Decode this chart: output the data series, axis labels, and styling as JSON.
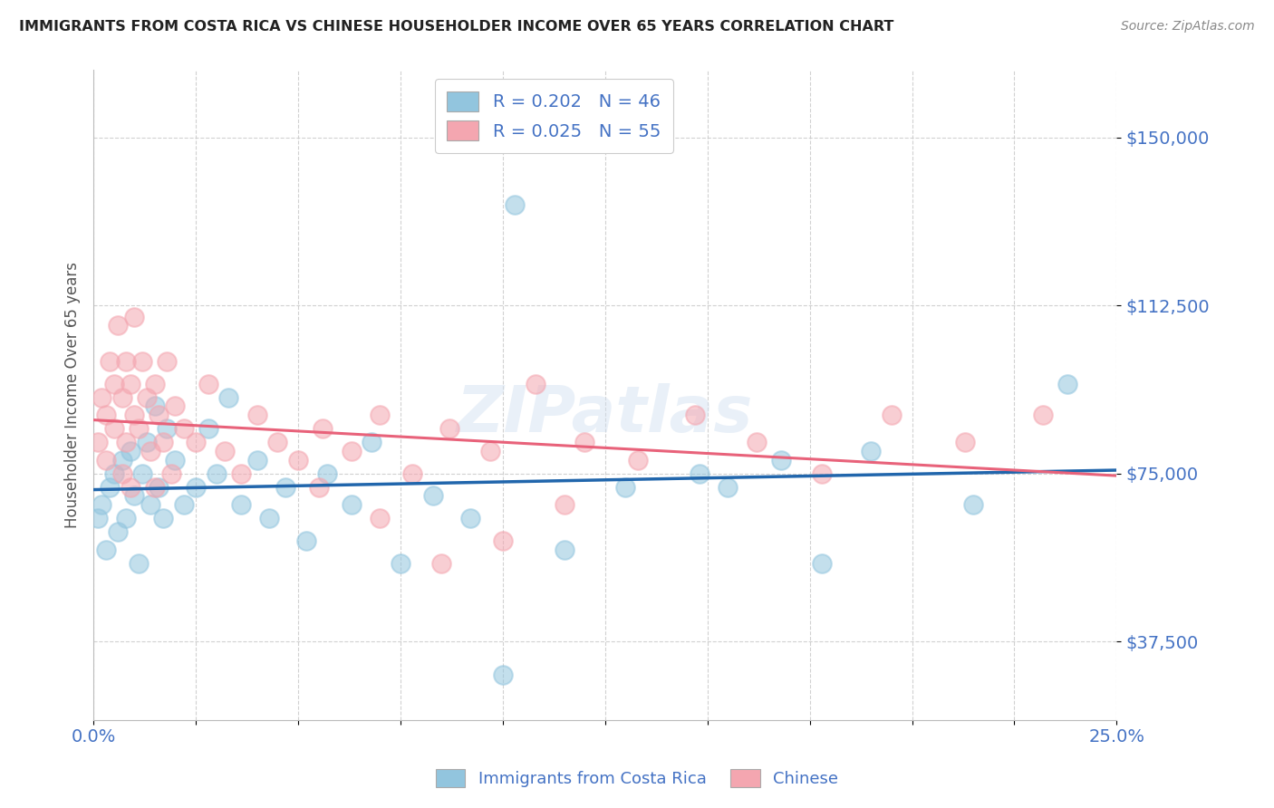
{
  "title": "IMMIGRANTS FROM COSTA RICA VS CHINESE HOUSEHOLDER INCOME OVER 65 YEARS CORRELATION CHART",
  "source": "Source: ZipAtlas.com",
  "ylabel": "Householder Income Over 65 years",
  "xlim": [
    0.0,
    0.25
  ],
  "ylim": [
    20000,
    165000
  ],
  "yticks": [
    37500,
    75000,
    112500,
    150000
  ],
  "ytick_labels": [
    "$37,500",
    "$75,000",
    "$112,500",
    "$150,000"
  ],
  "xticks": [
    0.0,
    0.025,
    0.05,
    0.075,
    0.1,
    0.125,
    0.15,
    0.175,
    0.2,
    0.225,
    0.25
  ],
  "legend_labels_top": [
    "R = 0.202   N = 46",
    "R = 0.025   N = 55"
  ],
  "legend_labels_bottom": [
    "Immigrants from Costa Rica",
    "Chinese"
  ],
  "blue_color": "#92c5de",
  "pink_color": "#f4a6b0",
  "blue_line_color": "#2166ac",
  "pink_line_color": "#e8627a",
  "watermark": "ZIPatlas",
  "axis_color": "#4472c4",
  "cr_x": [
    0.001,
    0.002,
    0.003,
    0.004,
    0.005,
    0.006,
    0.007,
    0.008,
    0.009,
    0.01,
    0.011,
    0.012,
    0.013,
    0.014,
    0.015,
    0.016,
    0.017,
    0.018,
    0.02,
    0.022,
    0.025,
    0.028,
    0.03,
    0.033,
    0.036,
    0.04,
    0.043,
    0.047,
    0.052,
    0.057,
    0.063,
    0.068,
    0.075,
    0.083,
    0.092,
    0.103,
    0.115,
    0.13,
    0.148,
    0.168,
    0.19,
    0.215,
    0.238,
    0.155,
    0.178,
    0.1
  ],
  "cr_y": [
    65000,
    68000,
    58000,
    72000,
    75000,
    62000,
    78000,
    65000,
    80000,
    70000,
    55000,
    75000,
    82000,
    68000,
    90000,
    72000,
    65000,
    85000,
    78000,
    68000,
    72000,
    85000,
    75000,
    92000,
    68000,
    78000,
    65000,
    72000,
    60000,
    75000,
    68000,
    82000,
    55000,
    70000,
    65000,
    135000,
    58000,
    72000,
    75000,
    78000,
    80000,
    68000,
    95000,
    72000,
    55000,
    30000
  ],
  "ch_x": [
    0.001,
    0.002,
    0.003,
    0.003,
    0.004,
    0.005,
    0.005,
    0.006,
    0.007,
    0.007,
    0.008,
    0.008,
    0.009,
    0.009,
    0.01,
    0.01,
    0.011,
    0.012,
    0.013,
    0.014,
    0.015,
    0.015,
    0.016,
    0.017,
    0.018,
    0.019,
    0.02,
    0.022,
    0.025,
    0.028,
    0.032,
    0.036,
    0.04,
    0.045,
    0.05,
    0.056,
    0.063,
    0.07,
    0.078,
    0.087,
    0.097,
    0.108,
    0.12,
    0.133,
    0.147,
    0.162,
    0.178,
    0.195,
    0.213,
    0.232,
    0.055,
    0.07,
    0.085,
    0.1,
    0.115
  ],
  "ch_y": [
    82000,
    92000,
    88000,
    78000,
    100000,
    95000,
    85000,
    108000,
    92000,
    75000,
    100000,
    82000,
    95000,
    72000,
    88000,
    110000,
    85000,
    100000,
    92000,
    80000,
    95000,
    72000,
    88000,
    82000,
    100000,
    75000,
    90000,
    85000,
    82000,
    95000,
    80000,
    75000,
    88000,
    82000,
    78000,
    85000,
    80000,
    88000,
    75000,
    85000,
    80000,
    95000,
    82000,
    78000,
    88000,
    82000,
    75000,
    88000,
    82000,
    88000,
    72000,
    65000,
    55000,
    60000,
    68000
  ]
}
